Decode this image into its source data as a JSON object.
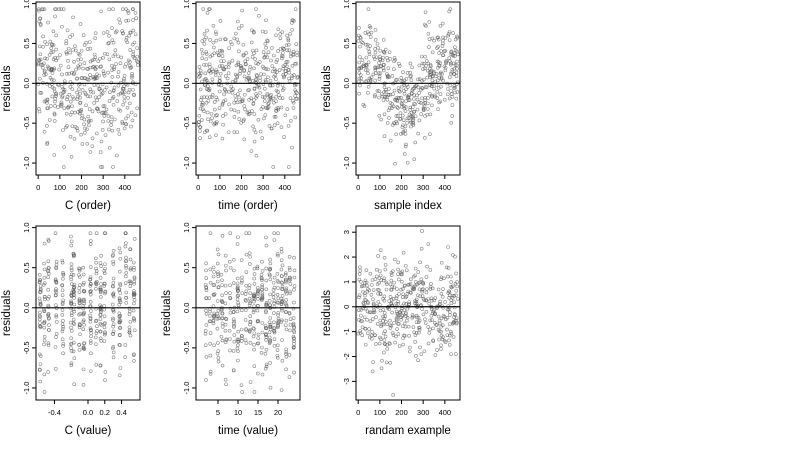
{
  "chart_data": [
    {
      "type": "scatter",
      "xlabel": "C (order)",
      "ylabel": "residuals",
      "xlim": [
        -10,
        470
      ],
      "ylim": [
        -1.15,
        1.02
      ],
      "x_ticks": [
        0,
        100,
        200,
        300,
        400
      ],
      "x_tick_labels": [
        "0",
        "100",
        "200",
        "300",
        "400"
      ],
      "y_ticks": [
        -1.0,
        -0.5,
        0.0,
        0.5,
        1.0
      ],
      "y_tick_labels": [
        "-1.0",
        "-0.5",
        "0.0",
        "0.5",
        "1.0"
      ],
      "hline": 0,
      "pattern": "u",
      "n": 460,
      "x_range": [
        0,
        460
      ],
      "spread": 0.42,
      "seed": 11,
      "y_min": -1.05,
      "y_max": 0.93
    },
    {
      "type": "scatter",
      "xlabel": "time (order)",
      "ylabel": "residuals",
      "xlim": [
        -10,
        470
      ],
      "ylim": [
        -1.15,
        1.02
      ],
      "x_ticks": [
        0,
        100,
        200,
        300,
        400
      ],
      "x_tick_labels": [
        "0",
        "100",
        "200",
        "300",
        "400"
      ],
      "y_ticks": [
        -1.0,
        -0.5,
        0.0,
        0.5,
        1.0
      ],
      "y_tick_labels": [
        "-1.0",
        "-0.5",
        "0.0",
        "0.5",
        "1.0"
      ],
      "hline": 0,
      "pattern": "flat",
      "n": 460,
      "x_range": [
        0,
        460
      ],
      "spread": 0.38,
      "seed": 23,
      "y_min": -1.05,
      "y_max": 0.93
    },
    {
      "type": "scatter",
      "xlabel": "sample index",
      "ylabel": "residuals",
      "xlim": [
        -10,
        470
      ],
      "ylim": [
        -1.15,
        1.02
      ],
      "x_ticks": [
        0,
        100,
        200,
        300,
        400
      ],
      "x_tick_labels": [
        "0",
        "100",
        "200",
        "300",
        "400"
      ],
      "y_ticks": [
        -1.0,
        -0.5,
        0.0,
        0.5,
        1.0
      ],
      "y_tick_labels": [
        "-1.0",
        "-0.5",
        "0.0",
        "0.5",
        "1.0"
      ],
      "hline": 0,
      "pattern": "wave",
      "n": 460,
      "x_range": [
        0,
        460
      ],
      "spread": 0.28,
      "seed": 37,
      "y_min": -1.05,
      "y_max": 0.93
    },
    {
      "type": "scatter",
      "xlabel": "C (value)",
      "ylabel": "residuals",
      "xlim": [
        -0.62,
        0.62
      ],
      "ylim": [
        -1.15,
        1.02
      ],
      "x_ticks": [
        -0.4,
        0.0,
        0.2,
        0.4
      ],
      "x_tick_labels": [
        "-0.4",
        "0.0",
        "0.2",
        "0.4"
      ],
      "y_ticks": [
        -1.0,
        -0.5,
        0.0,
        0.5,
        1.0
      ],
      "y_tick_labels": [
        "-1.0",
        "-0.5",
        "0.0",
        "0.5",
        "1.0"
      ],
      "hline": 0,
      "pattern": "bands",
      "band_centers": [
        -0.57,
        -0.52,
        -0.47,
        -0.38,
        -0.3,
        -0.2,
        -0.17,
        -0.1,
        -0.05,
        0.03,
        0.1,
        0.15,
        0.2,
        0.3,
        0.38,
        0.45,
        0.5,
        0.55
      ],
      "n": 460,
      "spread": 0.4,
      "seed": 51,
      "y_min": -1.05,
      "y_max": 0.93
    },
    {
      "type": "scatter",
      "xlabel": "time (value)",
      "ylabel": "residuals",
      "xlim": [
        -0.5,
        25.5
      ],
      "ylim": [
        -1.15,
        1.02
      ],
      "x_ticks": [
        5,
        10,
        15,
        20
      ],
      "x_tick_labels": [
        "5",
        "10",
        "15",
        "20"
      ],
      "y_ticks": [
        -1.0,
        -0.5,
        0.0,
        0.5,
        1.0
      ],
      "y_tick_labels": [
        "-1.0",
        "-0.5",
        "0.0",
        "0.5",
        "1.0"
      ],
      "hline": 0,
      "pattern": "bands",
      "band_centers": [
        2,
        3,
        4,
        5,
        6,
        7,
        8,
        9,
        10,
        11,
        12,
        13,
        14,
        15,
        16,
        17,
        18,
        19,
        20,
        21,
        22,
        23,
        24
      ],
      "n": 460,
      "spread": 0.38,
      "seed": 67,
      "y_min": -1.05,
      "y_max": 0.93
    },
    {
      "type": "scatter",
      "xlabel": "randam example",
      "ylabel": "residuals",
      "xlim": [
        -10,
        470
      ],
      "ylim": [
        -3.75,
        3.25
      ],
      "x_ticks": [
        0,
        100,
        200,
        300,
        400
      ],
      "x_tick_labels": [
        "0",
        "100",
        "200",
        "300",
        "400"
      ],
      "y_ticks": [
        -3,
        -2,
        -1,
        0,
        1,
        2,
        3
      ],
      "y_tick_labels": [
        "-3",
        "-2",
        "-1",
        "0",
        "1",
        "2",
        "3"
      ],
      "hline": 0,
      "pattern": "normal",
      "n": 460,
      "x_range": [
        0,
        460
      ],
      "spread": 1.0,
      "seed": 83,
      "y_min": -3.6,
      "y_max": 3.05
    }
  ]
}
